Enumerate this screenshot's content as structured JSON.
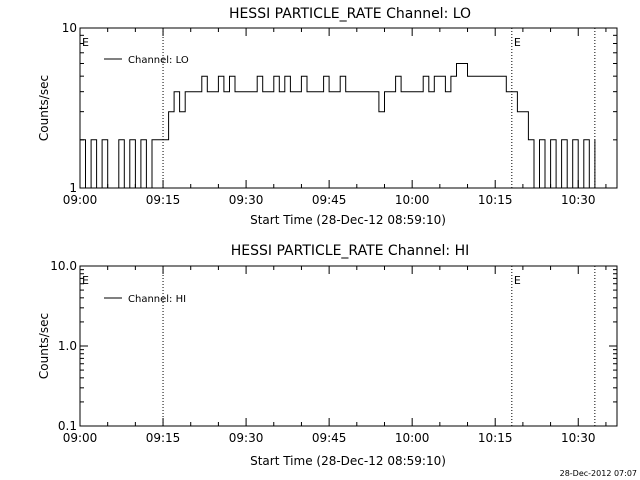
{
  "chart_data": [
    {
      "type": "line",
      "title": "HESSI PARTICLE_RATE Channel: LO",
      "xlabel": "Start Time (28-Dec-12 08:59:10)",
      "ylabel": "Counts/sec",
      "yscale": "log",
      "xlim": [
        "09:00",
        "10:37"
      ],
      "ylim": [
        1,
        10
      ],
      "x_ticks": [
        "09:00",
        "09:15",
        "09:30",
        "09:45",
        "10:00",
        "10:15",
        "10:30"
      ],
      "y_ticks": [
        "1",
        "10"
      ],
      "legend": {
        "position": "top-left",
        "entries": [
          "Channel: LO"
        ]
      },
      "markers": [
        {
          "label": "E",
          "time": "09:00"
        },
        {
          "label": "E",
          "time": "10:18"
        }
      ],
      "vlines": [
        "09:15",
        "10:18",
        "10:33"
      ],
      "series": [
        {
          "name": "Channel: LO",
          "x": [
            "09:00",
            "09:01",
            "09:02",
            "09:03",
            "09:04",
            "09:05",
            "09:06",
            "09:07",
            "09:08",
            "09:09",
            "09:10",
            "09:11",
            "09:12",
            "09:13",
            "09:14",
            "09:15",
            "09:16",
            "09:17",
            "09:18",
            "09:19",
            "09:20",
            "09:21",
            "09:22",
            "09:23",
            "09:24",
            "09:25",
            "09:26",
            "09:27",
            "09:28",
            "09:29",
            "09:30",
            "09:31",
            "09:32",
            "09:33",
            "09:34",
            "09:35",
            "09:36",
            "09:37",
            "09:38",
            "09:39",
            "09:40",
            "09:41",
            "09:42",
            "09:43",
            "09:44",
            "09:45",
            "09:46",
            "09:47",
            "09:48",
            "09:49",
            "09:50",
            "09:51",
            "09:52",
            "09:53",
            "09:54",
            "09:55",
            "09:56",
            "09:57",
            "09:58",
            "09:59",
            "10:00",
            "10:01",
            "10:02",
            "10:03",
            "10:04",
            "10:05",
            "10:06",
            "10:07",
            "10:08",
            "10:09",
            "10:10",
            "10:11",
            "10:12",
            "10:13",
            "10:14",
            "10:15",
            "10:16",
            "10:17",
            "10:18",
            "10:19",
            "10:20",
            "10:21",
            "10:22",
            "10:23",
            "10:24",
            "10:25",
            "10:26",
            "10:27",
            "10:28",
            "10:29",
            "10:30",
            "10:31",
            "10:32",
            "10:33"
          ],
          "values": [
            2,
            1,
            2,
            1,
            2,
            1,
            1,
            2,
            1,
            2,
            1,
            2,
            1,
            2,
            2,
            2,
            3,
            4,
            3,
            4,
            4,
            4,
            5,
            4,
            4,
            5,
            4,
            5,
            4,
            4,
            4,
            4,
            5,
            4,
            4,
            5,
            4,
            5,
            4,
            4,
            5,
            4,
            4,
            4,
            5,
            4,
            4,
            5,
            4,
            4,
            4,
            4,
            4,
            4,
            3,
            4,
            4,
            5,
            4,
            4,
            4,
            4,
            5,
            4,
            5,
            5,
            4,
            5,
            6,
            6,
            5,
            5,
            5,
            5,
            5,
            5,
            5,
            4,
            4,
            3,
            3,
            2,
            1,
            2,
            1,
            2,
            1,
            2,
            1,
            2,
            1,
            2,
            1,
            2
          ]
        }
      ]
    },
    {
      "type": "line",
      "title": "HESSI PARTICLE_RATE Channel: HI",
      "xlabel": "Start Time (28-Dec-12 08:59:10)",
      "ylabel": "Counts/sec",
      "yscale": "log",
      "xlim": [
        "09:00",
        "10:37"
      ],
      "ylim": [
        0.1,
        10
      ],
      "x_ticks": [
        "09:00",
        "09:15",
        "09:30",
        "09:45",
        "10:00",
        "10:15",
        "10:30"
      ],
      "y_ticks": [
        "0.1",
        "1.0",
        "10.0"
      ],
      "legend": {
        "position": "top-left",
        "entries": [
          "Channel: HI"
        ]
      },
      "markers": [
        {
          "label": "E",
          "time": "09:00"
        },
        {
          "label": "E",
          "time": "10:18"
        }
      ],
      "vlines": [
        "09:15",
        "10:18",
        "10:33"
      ],
      "series": [
        {
          "name": "Channel: HI",
          "x": [],
          "values": []
        }
      ]
    }
  ],
  "footer": {
    "timestamp": "28-Dec-2012 07:07"
  }
}
